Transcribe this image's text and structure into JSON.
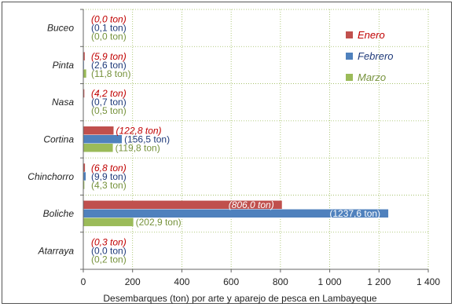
{
  "chart_data": {
    "type": "bar",
    "orientation": "horizontal",
    "categories": [
      "Buceo",
      "Pinta",
      "Nasa",
      "Cortina",
      "Chinchorro",
      "Boliche",
      "Atarraya"
    ],
    "series": [
      {
        "name": "Enero",
        "color": "#c0504d",
        "label_color": "#c00000",
        "label_italic": true,
        "values": [
          0.0,
          5.9,
          4.2,
          122.8,
          6.8,
          806.0,
          0.3
        ],
        "labels": [
          "(0,0 ton)",
          "(5,9 ton)",
          "(4,2 ton)",
          "(122,8 ton)",
          "(6,8 ton)",
          "(806,0 ton)",
          "(0,3 ton)"
        ]
      },
      {
        "name": "Febrero",
        "color": "#4f81bd",
        "label_color": "#1f3a7a",
        "label_italic": false,
        "values": [
          0.1,
          2.6,
          0.7,
          156.5,
          9.9,
          1237.6,
          0.0
        ],
        "labels": [
          "(0,1 ton)",
          "(2,6 ton)",
          "(0,7 ton)",
          "(156,5 ton)",
          "(9,9 ton)",
          "(1237,6 ton)",
          "(0,0 ton)"
        ]
      },
      {
        "name": "Marzo",
        "color": "#9bbb59",
        "label_color": "#76923c",
        "label_italic": false,
        "values": [
          0.0,
          11.8,
          0.5,
          119.8,
          4.3,
          202.9,
          0.2
        ],
        "labels": [
          "(0,0 ton)",
          "(11,8 ton)",
          "(0,5 ton)",
          "(119,8 ton)",
          "(4,3 ton)",
          "(202,9 ton)",
          "(0,2 ton)"
        ]
      }
    ],
    "xlabel": "Desembarques (ton) por arte y aparejo de pesca en Lambayeque",
    "xlim": [
      0,
      1400
    ],
    "xticks": [
      0,
      200,
      400,
      600,
      800,
      1000,
      1200,
      1400
    ],
    "xtick_labels": [
      "0",
      "200",
      "400",
      "600",
      "800",
      "1 000",
      "1 200",
      "1 400"
    ],
    "grid": true,
    "legend_position": "top-right"
  }
}
